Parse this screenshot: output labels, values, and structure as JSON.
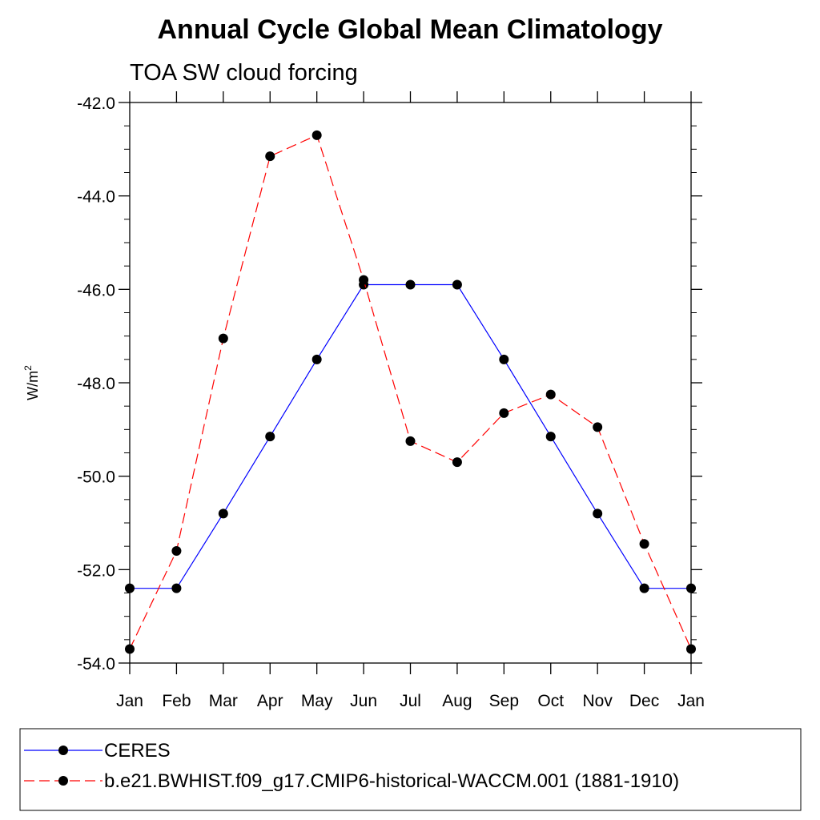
{
  "chart_data": {
    "type": "line",
    "title": "Annual Cycle Global Mean Climatology",
    "subtitle": "TOA SW cloud forcing",
    "ylabel": "W/m",
    "ylabel_superscript": "2",
    "xlabel": "",
    "categories": [
      "Jan",
      "Feb",
      "Mar",
      "Apr",
      "May",
      "Jun",
      "Jul",
      "Aug",
      "Sep",
      "Oct",
      "Nov",
      "Dec",
      "Jan"
    ],
    "ylim": [
      -54.0,
      -42.0
    ],
    "yticks": [
      "-42.0",
      "-44.0",
      "-46.0",
      "-48.0",
      "-50.0",
      "-52.0",
      "-54.0"
    ],
    "grid": false,
    "legend_position": "bottom",
    "series": [
      {
        "name": "CERES",
        "color": "#0000ff",
        "dash": "solid",
        "marker": "filled-circle",
        "values": [
          -52.4,
          -52.4,
          -50.8,
          -49.15,
          -47.5,
          -45.9,
          -45.9,
          -45.9,
          -47.5,
          -49.15,
          -50.8,
          -52.4,
          -52.4
        ]
      },
      {
        "name": "b.e21.BWHIST.f09_g17.CMIP6-historical-WACCM.001 (1881-1910)",
        "color": "#ff0000",
        "dash": "dashed",
        "marker": "filled-circle",
        "values": [
          -53.7,
          -51.6,
          -47.05,
          -43.15,
          -42.7,
          -45.8,
          -49.25,
          -49.7,
          -48.65,
          -48.25,
          -48.95,
          -51.45,
          -53.7
        ]
      }
    ]
  }
}
